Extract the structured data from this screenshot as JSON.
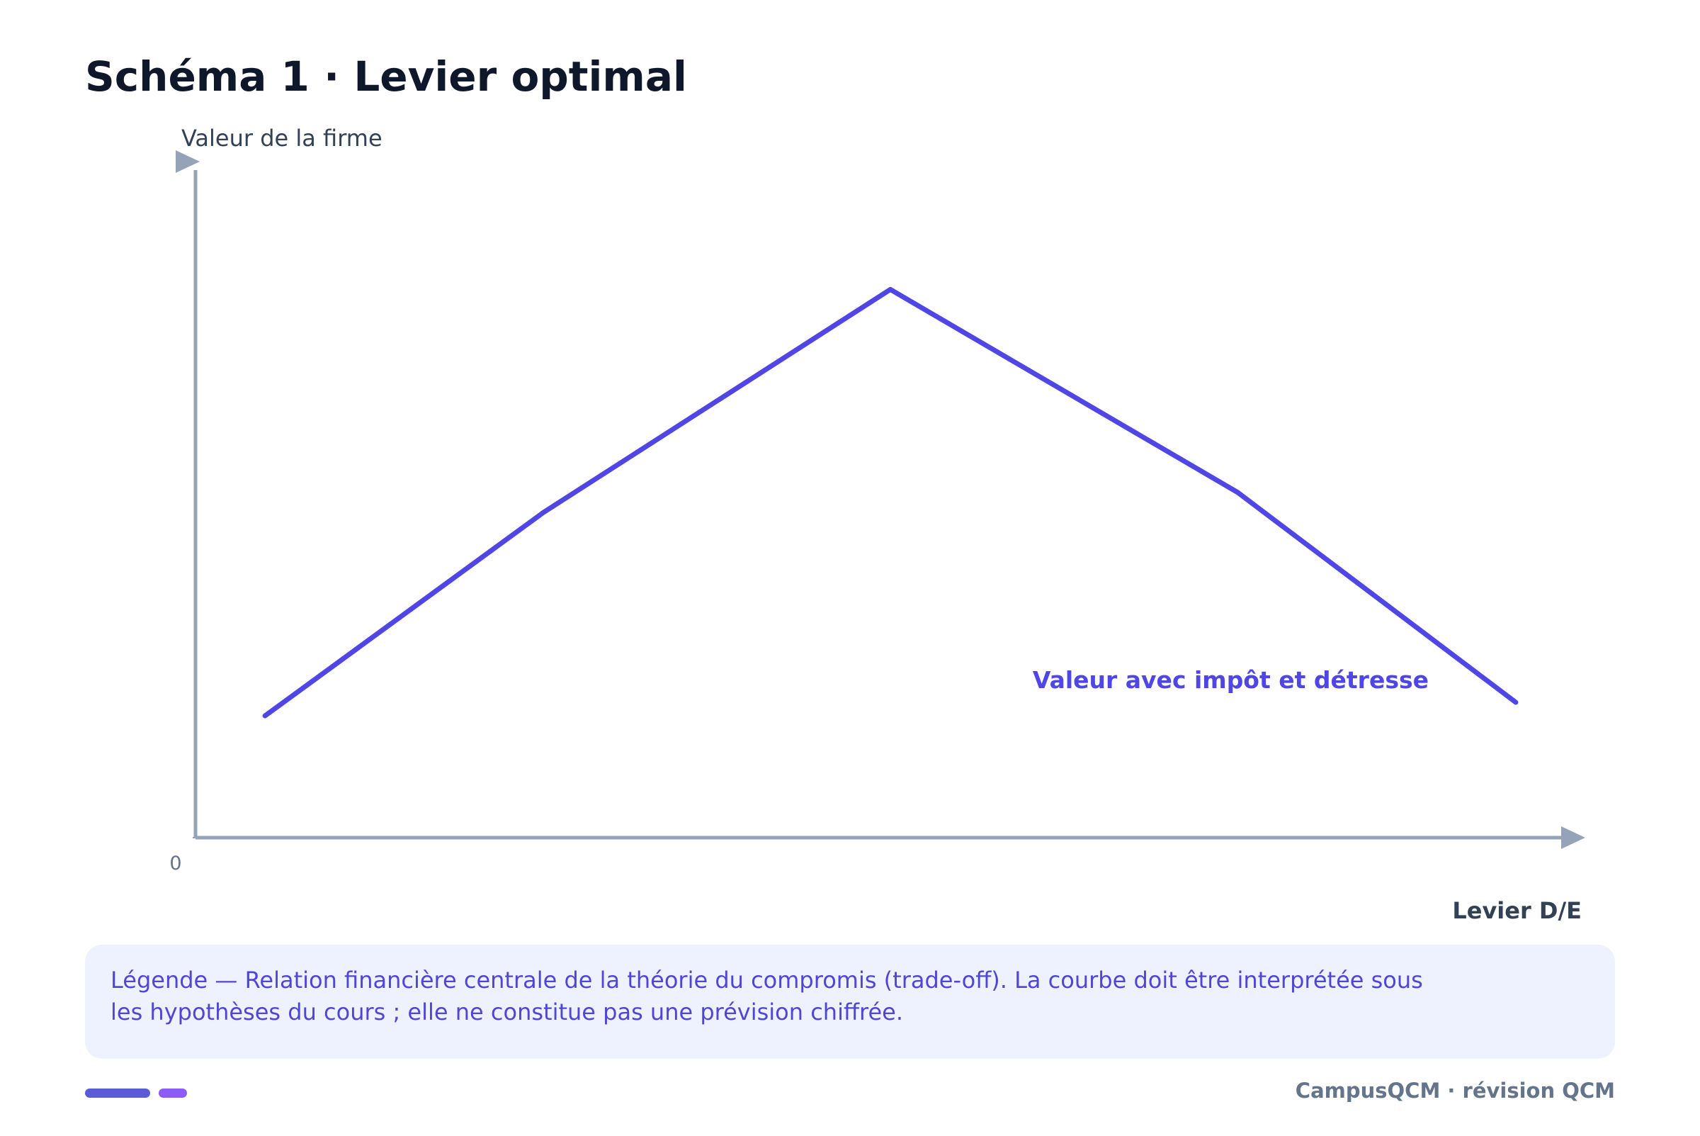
{
  "chart_data": {
    "type": "line",
    "title": "Schéma 1 · Levier optimal",
    "y_label": "Valeur de la firme",
    "x_label": "Levier D/E",
    "x": [
      0.5,
      2.5,
      5,
      7.5,
      9.5
    ],
    "series": [
      {
        "name": "Valeur avec impôt et détresse",
        "color": "#4f46e5",
        "values": [
          1.8,
          4.8,
          8.1,
          5.1,
          2.0
        ]
      }
    ],
    "xlim": [
      0,
      10
    ],
    "ylim": [
      0,
      10
    ],
    "yticks": [
      0
    ],
    "grid": false
  },
  "caption": "Légende — Relation financière centrale de la théorie du compromis (trade-off). La courbe doit être interprétée sous les hypothèses du cours ; elle ne constitue pas une prévision chiffrée.",
  "footer": "CampusQCM · révision QCM"
}
